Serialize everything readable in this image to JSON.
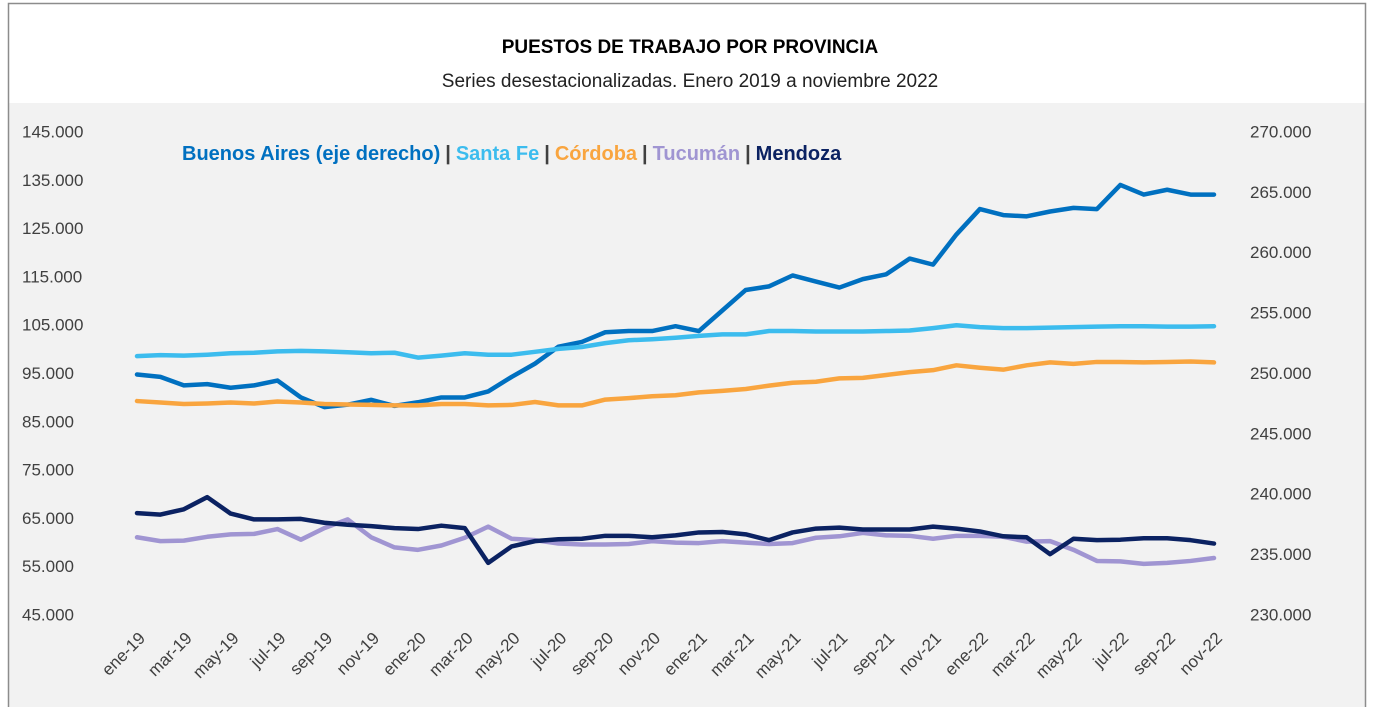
{
  "chart_data": {
    "type": "line",
    "title": "PUESTOS DE TRABAJO POR PROVINCIA",
    "subtitle": "Series desestacionalizadas. Enero 2019 a noviembre 2022",
    "legend_separator": "|",
    "grid": false,
    "categories": [
      "ene-19",
      null,
      "mar-19",
      null,
      "may-19",
      null,
      "jul-19",
      null,
      "sep-19",
      null,
      "nov-19",
      null,
      "ene-20",
      null,
      "mar-20",
      null,
      "may-20",
      null,
      "jul-20",
      null,
      "sep-20",
      null,
      "nov-20",
      null,
      "ene-21",
      null,
      "mar-21",
      null,
      "may-21",
      null,
      "jul-21",
      null,
      "sep-21",
      null,
      "nov-21",
      null,
      "ene-22",
      null,
      "mar-22",
      null,
      "may-22",
      null,
      "jul-22",
      null,
      "sep-22",
      null,
      "nov-22"
    ],
    "ylim": [
      45000,
      145000
    ],
    "yticks": [
      {
        "value": 45000,
        "label": "45.000"
      },
      {
        "value": 55000,
        "label": "55.000"
      },
      {
        "value": 65000,
        "label": "65.000"
      },
      {
        "value": 75000,
        "label": "75.000"
      },
      {
        "value": 85000,
        "label": "85.000"
      },
      {
        "value": 95000,
        "label": "95.000"
      },
      {
        "value": 105000,
        "label": "105.000"
      },
      {
        "value": 115000,
        "label": "115.000"
      },
      {
        "value": 125000,
        "label": "125.000"
      },
      {
        "value": 135000,
        "label": "135.000"
      },
      {
        "value": 145000,
        "label": "145.000"
      }
    ],
    "y2lim": [
      230000,
      270000
    ],
    "y2ticks": [
      {
        "value": 230000,
        "label": "230.000"
      },
      {
        "value": 235000,
        "label": "235.000"
      },
      {
        "value": 240000,
        "label": "240.000"
      },
      {
        "value": 245000,
        "label": "245.000"
      },
      {
        "value": 250000,
        "label": "250.000"
      },
      {
        "value": 255000,
        "label": "255.000"
      },
      {
        "value": 260000,
        "label": "260.000"
      },
      {
        "value": 265000,
        "label": "265.000"
      },
      {
        "value": 270000,
        "label": "270.000"
      }
    ],
    "series": [
      {
        "name": "Buenos Aires (eje derecho)",
        "color": "#0070c0",
        "axis": "y2",
        "values": [
          250000,
          249800,
          249100,
          249200,
          248900,
          249100,
          249500,
          248100,
          247300,
          247500,
          247900,
          247400,
          247700,
          248100,
          248100,
          248600,
          249800,
          250900,
          252300,
          252700,
          253500,
          253600,
          253600,
          254000,
          253600,
          255300,
          257000,
          257300,
          258200,
          257700,
          257200,
          257900,
          258300,
          259600,
          259100,
          261600,
          263700,
          263200,
          263100,
          263500,
          263800,
          263700,
          265700,
          264900,
          265300,
          264900,
          264900
        ]
      },
      {
        "name": "Santa Fe",
        "color": "#3cbcee",
        "values": [
          98800,
          99000,
          98900,
          99100,
          99400,
          99500,
          99800,
          99900,
          99800,
          99600,
          99400,
          99500,
          98500,
          98900,
          99400,
          99100,
          99100,
          99700,
          100300,
          100700,
          101500,
          102100,
          102300,
          102600,
          103000,
          103300,
          103300,
          104000,
          104000,
          103900,
          103900,
          103900,
          104000,
          104100,
          104600,
          105200,
          104800,
          104600,
          104600,
          104700,
          104800,
          104900,
          105000,
          105000,
          104900,
          104900,
          105000
        ]
      },
      {
        "name": "Córdoba",
        "color": "#f9a53f",
        "values": [
          89500,
          89200,
          88900,
          89000,
          89200,
          89000,
          89400,
          89200,
          88900,
          88800,
          88700,
          88600,
          88600,
          88900,
          88900,
          88600,
          88700,
          89300,
          88600,
          88600,
          89800,
          90100,
          90500,
          90700,
          91300,
          91600,
          92000,
          92700,
          93300,
          93500,
          94200,
          94300,
          94900,
          95500,
          95900,
          96900,
          96400,
          96000,
          96900,
          97500,
          97200,
          97600,
          97600,
          97500,
          97600,
          97700,
          97500
        ]
      },
      {
        "name": "Tucumán",
        "color": "#a095d2",
        "values": [
          61300,
          60500,
          60600,
          61400,
          61900,
          62000,
          63000,
          60800,
          63200,
          65000,
          61300,
          59200,
          58700,
          59600,
          61200,
          63500,
          61000,
          60700,
          60000,
          59800,
          59800,
          59900,
          60500,
          60200,
          60100,
          60500,
          60200,
          59900,
          60100,
          61200,
          61500,
          62200,
          61700,
          61600,
          61000,
          61600,
          61600,
          61400,
          60400,
          60500,
          58700,
          56400,
          56300,
          55800,
          56000,
          56400,
          57000
        ]
      },
      {
        "name": "Mendoza",
        "color": "#0b2262",
        "values": [
          66300,
          66000,
          67100,
          69600,
          66200,
          65000,
          65000,
          65100,
          64300,
          63900,
          63600,
          63200,
          63000,
          63700,
          63200,
          56000,
          59400,
          60500,
          60900,
          61000,
          61600,
          61600,
          61300,
          61700,
          62300,
          62400,
          61900,
          60700,
          62300,
          63100,
          63300,
          62900,
          62900,
          62900,
          63500,
          63100,
          62500,
          61500,
          61300,
          57800,
          61000,
          60700,
          60800,
          61100,
          61100,
          60700,
          60000
        ]
      }
    ]
  }
}
